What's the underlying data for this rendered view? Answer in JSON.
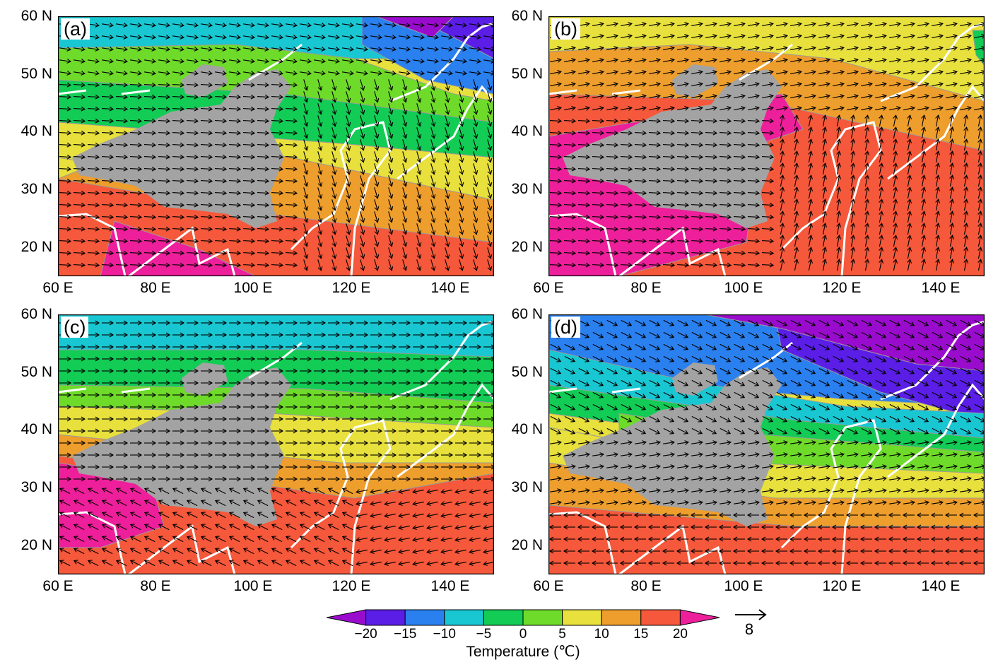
{
  "figure": {
    "panels": [
      {
        "label": "(a)"
      },
      {
        "label": "(b)"
      },
      {
        "label": "(c)"
      },
      {
        "label": "(d)"
      }
    ],
    "lat_ticks": [
      "60 N",
      "50 N",
      "40 N",
      "30 N",
      "20 N"
    ],
    "lon_ticks": [
      "60 E",
      "80 E",
      "100 E",
      "120 E",
      "140 E"
    ]
  },
  "colorbar": {
    "title": "Temperature (℃)",
    "labels": [
      "−20",
      "−15",
      "−10",
      "−5",
      "0",
      "5",
      "10",
      "15",
      "20"
    ],
    "colors": [
      "#9a0ccd",
      "#5a1ee6",
      "#2a80ee",
      "#19c7d2",
      "#12cc55",
      "#6edb2a",
      "#e8e03c",
      "#ee9e2c",
      "#f5583a",
      "#ee1f9a"
    ]
  },
  "reference_vector": {
    "label": "8"
  },
  "colors": {
    "terrain_mask": "#a3a3a3",
    "coastline": "#ffffff",
    "arrow": "#000000"
  }
}
